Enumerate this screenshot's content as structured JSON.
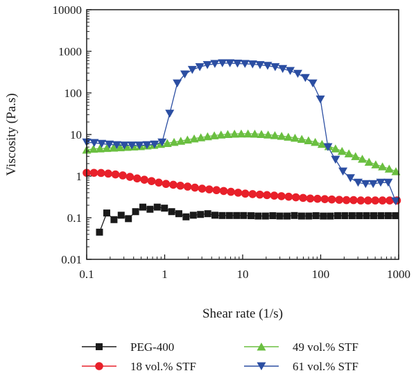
{
  "chart_data": {
    "type": "scatter",
    "title": "",
    "xlabel": "Shear rate (1/s)",
    "ylabel": "Viscosity (Pa.s)",
    "xscale": "log",
    "yscale": "log",
    "xlim": [
      0.1,
      1000
    ],
    "ylim": [
      0.01,
      10000
    ],
    "xticks": [
      "0.1",
      "1",
      "10",
      "100",
      "1000"
    ],
    "yticks": [
      "0.01",
      "0.1",
      "1",
      "10",
      "100",
      "1000",
      "10000"
    ],
    "grid": false,
    "legend_position": "bottom",
    "series": [
      {
        "name": "PEG-400",
        "color": "#1a1a1a",
        "marker": "square",
        "x": [
          0.146,
          0.181,
          0.224,
          0.277,
          0.343,
          0.424,
          0.525,
          0.649,
          0.803,
          0.994,
          1.23,
          1.52,
          1.88,
          2.33,
          2.88,
          3.57,
          4.41,
          5.46,
          6.76,
          8.36,
          10.3,
          12.8,
          15.8,
          19.6,
          24.3,
          30.0,
          37.1,
          46.0,
          56.9,
          70.4,
          87.1,
          108,
          133,
          165,
          204,
          253,
          313,
          387,
          479,
          593,
          734,
          908
        ],
        "y": [
          0.045,
          0.13,
          0.09,
          0.115,
          0.095,
          0.14,
          0.18,
          0.16,
          0.18,
          0.17,
          0.14,
          0.125,
          0.105,
          0.115,
          0.12,
          0.125,
          0.115,
          0.113,
          0.113,
          0.113,
          0.113,
          0.112,
          0.11,
          0.11,
          0.112,
          0.11,
          0.11,
          0.113,
          0.11,
          0.11,
          0.112,
          0.11,
          0.11,
          0.112,
          0.112,
          0.112,
          0.112,
          0.112,
          0.112,
          0.112,
          0.112,
          0.112
        ]
      },
      {
        "name": "18 vol.% STF",
        "color": "#e8202a",
        "marker": "circle",
        "x": [
          0.1,
          0.124,
          0.153,
          0.189,
          0.234,
          0.29,
          0.359,
          0.444,
          0.549,
          0.679,
          0.84,
          1.04,
          1.29,
          1.59,
          1.97,
          2.44,
          3.02,
          3.73,
          4.62,
          5.71,
          7.07,
          8.75,
          10.8,
          13.4,
          16.6,
          20.5,
          25.4,
          31.4,
          38.9,
          48.1,
          59.5,
          73.6,
          91.1,
          113,
          139,
          173,
          214,
          264,
          327,
          405,
          501,
          620,
          767,
          949
        ],
        "y": [
          1.2,
          1.2,
          1.19,
          1.15,
          1.1,
          1.04,
          0.96,
          0.88,
          0.82,
          0.76,
          0.7,
          0.65,
          0.62,
          0.59,
          0.56,
          0.53,
          0.5,
          0.48,
          0.46,
          0.44,
          0.42,
          0.4,
          0.38,
          0.37,
          0.36,
          0.35,
          0.34,
          0.33,
          0.32,
          0.31,
          0.3,
          0.29,
          0.285,
          0.28,
          0.275,
          0.27,
          0.265,
          0.265,
          0.26,
          0.26,
          0.26,
          0.26,
          0.26,
          0.26
        ]
      },
      {
        "name": "49 vol.% STF",
        "color": "#6abf40",
        "marker": "triangle-up",
        "x": [
          0.1,
          0.122,
          0.148,
          0.181,
          0.221,
          0.269,
          0.328,
          0.4,
          0.488,
          0.595,
          0.726,
          0.885,
          1.08,
          1.32,
          1.61,
          1.96,
          2.39,
          2.91,
          3.55,
          4.33,
          5.28,
          6.44,
          7.86,
          9.59,
          11.7,
          14.3,
          17.4,
          21.2,
          25.9,
          31.6,
          38.5,
          46.9,
          57.3,
          69.8,
          85.2,
          104,
          127,
          155,
          188,
          230,
          280,
          342,
          417,
          508,
          620,
          756,
          922
        ],
        "y": [
          4.3,
          4.5,
          4.6,
          4.7,
          4.8,
          4.9,
          5.0,
          5.1,
          5.2,
          5.4,
          5.6,
          5.9,
          6.2,
          6.6,
          7.0,
          7.5,
          8.0,
          8.5,
          9.0,
          9.5,
          9.9,
          10.2,
          10.4,
          10.5,
          10.5,
          10.4,
          10.2,
          9.9,
          9.6,
          9.2,
          8.8,
          8.3,
          7.8,
          7.2,
          6.6,
          5.9,
          5.2,
          4.6,
          4.0,
          3.5,
          3.0,
          2.6,
          2.2,
          1.9,
          1.7,
          1.5,
          1.3
        ]
      },
      {
        "name": "61 vol.% STF",
        "color": "#2b4ea2",
        "marker": "triangle-down",
        "x": [
          0.1,
          0.125,
          0.156,
          0.195,
          0.243,
          0.304,
          0.38,
          0.475,
          0.593,
          0.741,
          0.926,
          1.16,
          1.45,
          1.81,
          2.26,
          2.82,
          3.53,
          4.4,
          5.5,
          6.87,
          8.58,
          10.7,
          13.4,
          16.7,
          20.9,
          26.1,
          32.6,
          40.7,
          50.9,
          63.6,
          79.4,
          99.2,
          124,
          155,
          193,
          241,
          302,
          377,
          471,
          588,
          734,
          917
        ],
        "y": [
          6.5,
          6.3,
          6.0,
          5.8,
          5.6,
          5.5,
          5.5,
          5.5,
          5.6,
          5.8,
          6.5,
          32,
          170,
          280,
          360,
          420,
          470,
          500,
          520,
          520,
          510,
          500,
          490,
          470,
          450,
          420,
          380,
          340,
          290,
          230,
          170,
          70,
          5,
          2.5,
          1.3,
          0.9,
          0.7,
          0.65,
          0.65,
          0.7,
          0.7,
          0.25
        ]
      }
    ]
  }
}
